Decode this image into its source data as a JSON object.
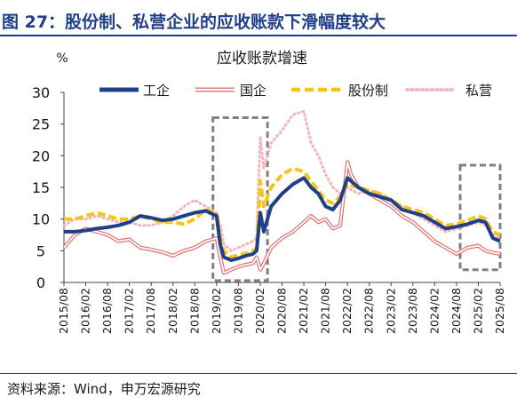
{
  "figure": {
    "title": "图 27：股份制、私营企业的应收账款下滑幅度较大",
    "source": "资料来源：Wind，申万宏源研究"
  },
  "colors": {
    "title": "#1f3f88",
    "gongqi": "#1f3f88",
    "guoqi": "#e07070",
    "gufenzhi": "#f5c518",
    "siying": "#f2b8bf",
    "highlight_box": "#808080"
  },
  "chart_data": {
    "type": "line",
    "title": "应收账款增速",
    "unit_label": "%",
    "ylim": [
      0,
      30
    ],
    "yticks": [
      0,
      5,
      10,
      15,
      20,
      25,
      30
    ],
    "x_range": [
      "2015-08",
      "2025-08"
    ],
    "xticks": [
      "2015/08",
      "2016/02",
      "2016/08",
      "2017/02",
      "2017/08",
      "2018/02",
      "2018/08",
      "2019/02",
      "2019/08",
      "2020/02",
      "2020/08",
      "2021/02",
      "2021/08",
      "2022/02",
      "2022/08",
      "2023/02",
      "2023/08",
      "2024/02",
      "2024/08",
      "2025/02",
      "2025/08"
    ],
    "grid": false,
    "legend_position": "top",
    "series": [
      {
        "name": "工企",
        "style": "thick-solid",
        "color": "#1f3f88",
        "points": [
          [
            "2015-08",
            8
          ],
          [
            "2015-11",
            8
          ],
          [
            "2016-02",
            8.2
          ],
          [
            "2016-05",
            8.5
          ],
          [
            "2016-08",
            8.7
          ],
          [
            "2016-11",
            9
          ],
          [
            "2017-02",
            9.5
          ],
          [
            "2017-05",
            10.5
          ],
          [
            "2017-08",
            10.2
          ],
          [
            "2017-11",
            9.8
          ],
          [
            "2018-02",
            10
          ],
          [
            "2018-05",
            10.5
          ],
          [
            "2018-08",
            11
          ],
          [
            "2018-11",
            11.3
          ],
          [
            "2019-02",
            10.5
          ],
          [
            "2019-03",
            6
          ],
          [
            "2019-04",
            4
          ],
          [
            "2019-06",
            3.5
          ],
          [
            "2019-08",
            3.8
          ],
          [
            "2019-10",
            4.2
          ],
          [
            "2019-12",
            4.5
          ],
          [
            "2020-01",
            5
          ],
          [
            "2020-02",
            11
          ],
          [
            "2020-03",
            8
          ],
          [
            "2020-05",
            12
          ],
          [
            "2020-08",
            14
          ],
          [
            "2020-11",
            15.5
          ],
          [
            "2021-02",
            16.5
          ],
          [
            "2021-04",
            15
          ],
          [
            "2021-06",
            14
          ],
          [
            "2021-08",
            12
          ],
          [
            "2021-10",
            11.5
          ],
          [
            "2021-12",
            13
          ],
          [
            "2022-02",
            16.5
          ],
          [
            "2022-05",
            15
          ],
          [
            "2022-08",
            14
          ],
          [
            "2022-11",
            13.5
          ],
          [
            "2023-02",
            13
          ],
          [
            "2023-05",
            11.5
          ],
          [
            "2023-08",
            11
          ],
          [
            "2023-11",
            10.5
          ],
          [
            "2024-02",
            9.5
          ],
          [
            "2024-05",
            8.5
          ],
          [
            "2024-08",
            8.8
          ],
          [
            "2024-11",
            9.2
          ],
          [
            "2025-02",
            9.8
          ],
          [
            "2025-04",
            9.5
          ],
          [
            "2025-06",
            7
          ],
          [
            "2025-08",
            6.5
          ]
        ]
      },
      {
        "name": "国企",
        "style": "double-outline",
        "color": "#e07070",
        "points": [
          [
            "2015-08",
            5.5
          ],
          [
            "2015-11",
            7.5
          ],
          [
            "2016-02",
            8.5
          ],
          [
            "2016-05",
            8
          ],
          [
            "2016-08",
            7.5
          ],
          [
            "2016-11",
            6.5
          ],
          [
            "2017-02",
            6.8
          ],
          [
            "2017-05",
            5.5
          ],
          [
            "2017-08",
            5.2
          ],
          [
            "2017-11",
            4.8
          ],
          [
            "2018-02",
            4.2
          ],
          [
            "2018-05",
            5
          ],
          [
            "2018-08",
            5.5
          ],
          [
            "2018-11",
            6.5
          ],
          [
            "2019-02",
            7
          ],
          [
            "2019-03",
            4
          ],
          [
            "2019-04",
            1.5
          ],
          [
            "2019-06",
            2
          ],
          [
            "2019-08",
            2.5
          ],
          [
            "2019-10",
            2.8
          ],
          [
            "2019-12",
            3
          ],
          [
            "2020-01",
            4
          ],
          [
            "2020-02",
            2
          ],
          [
            "2020-03",
            3
          ],
          [
            "2020-05",
            5.5
          ],
          [
            "2020-08",
            7
          ],
          [
            "2020-11",
            8
          ],
          [
            "2021-02",
            9.5
          ],
          [
            "2021-04",
            10.5
          ],
          [
            "2021-06",
            9.5
          ],
          [
            "2021-08",
            10
          ],
          [
            "2021-10",
            8.5
          ],
          [
            "2021-12",
            9
          ],
          [
            "2022-02",
            19
          ],
          [
            "2022-03",
            17
          ],
          [
            "2022-05",
            15
          ],
          [
            "2022-08",
            14
          ],
          [
            "2022-11",
            13
          ],
          [
            "2023-02",
            12
          ],
          [
            "2023-05",
            10.5
          ],
          [
            "2023-08",
            9.5
          ],
          [
            "2023-11",
            8
          ],
          [
            "2024-02",
            6.5
          ],
          [
            "2024-05",
            5.5
          ],
          [
            "2024-08",
            4.5
          ],
          [
            "2024-11",
            5.5
          ],
          [
            "2025-02",
            5.8
          ],
          [
            "2025-04",
            5
          ],
          [
            "2025-06",
            4.7
          ],
          [
            "2025-08",
            4.5
          ]
        ]
      },
      {
        "name": "股份制",
        "style": "dashed",
        "color": "#f5c518",
        "points": [
          [
            "2015-08",
            10
          ],
          [
            "2015-11",
            10
          ],
          [
            "2016-02",
            10.5
          ],
          [
            "2016-05",
            11
          ],
          [
            "2016-08",
            10.5
          ],
          [
            "2016-11",
            10
          ],
          [
            "2017-02",
            10
          ],
          [
            "2017-05",
            10.5
          ],
          [
            "2017-08",
            10
          ],
          [
            "2017-11",
            9.5
          ],
          [
            "2018-02",
            9.5
          ],
          [
            "2018-05",
            9.2
          ],
          [
            "2018-08",
            10
          ],
          [
            "2018-11",
            11.5
          ],
          [
            "2019-02",
            11
          ],
          [
            "2019-03",
            7
          ],
          [
            "2019-04",
            5
          ],
          [
            "2019-06",
            4
          ],
          [
            "2019-08",
            4.3
          ],
          [
            "2019-10",
            4.6
          ],
          [
            "2019-12",
            5
          ],
          [
            "2020-01",
            5.5
          ],
          [
            "2020-02",
            16
          ],
          [
            "2020-03",
            12
          ],
          [
            "2020-05",
            15
          ],
          [
            "2020-08",
            17
          ],
          [
            "2020-11",
            18
          ],
          [
            "2021-02",
            17.5
          ],
          [
            "2021-04",
            16
          ],
          [
            "2021-06",
            14.5
          ],
          [
            "2021-08",
            13
          ],
          [
            "2021-10",
            12.5
          ],
          [
            "2021-12",
            13.5
          ],
          [
            "2022-02",
            15.5
          ],
          [
            "2022-05",
            15
          ],
          [
            "2022-08",
            14.5
          ],
          [
            "2022-11",
            14
          ],
          [
            "2023-02",
            13
          ],
          [
            "2023-05",
            12
          ],
          [
            "2023-08",
            11.5
          ],
          [
            "2023-11",
            11
          ],
          [
            "2024-02",
            10
          ],
          [
            "2024-05",
            9
          ],
          [
            "2024-08",
            9.2
          ],
          [
            "2024-11",
            9.8
          ],
          [
            "2025-02",
            10.5
          ],
          [
            "2025-04",
            10
          ],
          [
            "2025-06",
            8
          ],
          [
            "2025-08",
            7.5
          ]
        ]
      },
      {
        "name": "私营",
        "style": "dotted",
        "color": "#f2b8bf",
        "points": [
          [
            "2015-08",
            9
          ],
          [
            "2015-11",
            10
          ],
          [
            "2016-02",
            10
          ],
          [
            "2016-05",
            10.5
          ],
          [
            "2016-08",
            10
          ],
          [
            "2016-11",
            9.5
          ],
          [
            "2017-02",
            9.5
          ],
          [
            "2017-05",
            9
          ],
          [
            "2017-08",
            9
          ],
          [
            "2017-11",
            9.5
          ],
          [
            "2018-02",
            10.5
          ],
          [
            "2018-05",
            12
          ],
          [
            "2018-08",
            13
          ],
          [
            "2018-11",
            12
          ],
          [
            "2019-02",
            11
          ],
          [
            "2019-03",
            9
          ],
          [
            "2019-04",
            6
          ],
          [
            "2019-06",
            5
          ],
          [
            "2019-08",
            5.5
          ],
          [
            "2019-10",
            6
          ],
          [
            "2019-12",
            6.5
          ],
          [
            "2020-01",
            7
          ],
          [
            "2020-02",
            23
          ],
          [
            "2020-03",
            18
          ],
          [
            "2020-05",
            22
          ],
          [
            "2020-08",
            24
          ],
          [
            "2020-11",
            26.5
          ],
          [
            "2021-02",
            27
          ],
          [
            "2021-04",
            22
          ],
          [
            "2021-06",
            20
          ],
          [
            "2021-08",
            17
          ],
          [
            "2021-10",
            15
          ],
          [
            "2021-12",
            14
          ],
          [
            "2022-02",
            15
          ],
          [
            "2022-05",
            14
          ],
          [
            "2022-08",
            14.5
          ],
          [
            "2022-11",
            14
          ],
          [
            "2023-02",
            13
          ],
          [
            "2023-05",
            12
          ],
          [
            "2023-08",
            11
          ],
          [
            "2023-11",
            10
          ],
          [
            "2024-02",
            9
          ],
          [
            "2024-05",
            8
          ],
          [
            "2024-08",
            8.5
          ],
          [
            "2024-11",
            9
          ],
          [
            "2025-02",
            9.5
          ],
          [
            "2025-04",
            9
          ],
          [
            "2025-06",
            7.5
          ],
          [
            "2025-08",
            7
          ]
        ]
      }
    ],
    "highlight_boxes": [
      {
        "x": [
          "2019-01",
          "2020-04"
        ],
        "y": [
          0.3,
          26
        ]
      },
      {
        "x": [
          "2024-09",
          "2025-08"
        ],
        "y": [
          2,
          18.5
        ]
      }
    ]
  }
}
